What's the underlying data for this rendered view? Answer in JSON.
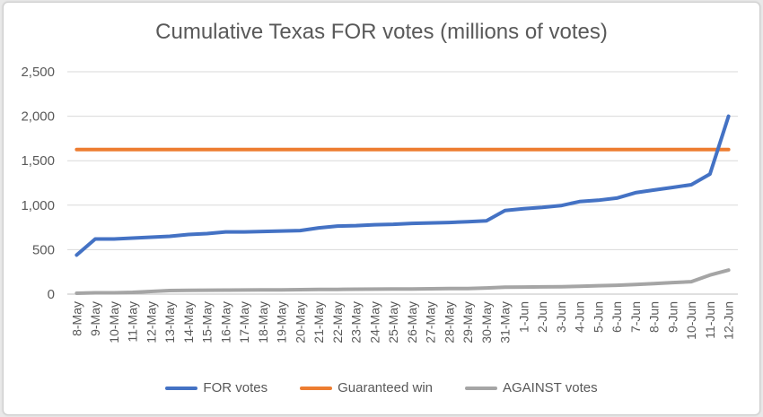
{
  "chart_data": {
    "type": "line",
    "title": "Cumulative Texas FOR votes (millions of votes)",
    "categories": [
      "8-May",
      "9-May",
      "10-May",
      "11-May",
      "12-May",
      "13-May",
      "14-May",
      "15-May",
      "16-May",
      "17-May",
      "18-May",
      "19-May",
      "20-May",
      "21-May",
      "22-May",
      "23-May",
      "24-May",
      "25-May",
      "26-May",
      "27-May",
      "28-May",
      "29-May",
      "30-May",
      "31-May",
      "1-Jun",
      "2-Jun",
      "3-Jun",
      "4-Jun",
      "5-Jun",
      "6-Jun",
      "7-Jun",
      "8-Jun",
      "9-Jun",
      "10-Jun",
      "11-Jun",
      "12-Jun"
    ],
    "ylim": [
      0,
      2500
    ],
    "yticks": [
      "0",
      "500",
      "1,000",
      "1,500",
      "2,000",
      "2,500"
    ],
    "ytick_values": [
      0,
      500,
      1000,
      1500,
      2000,
      2500
    ],
    "grid": true,
    "legend_position": "bottom",
    "series": [
      {
        "name": "FOR votes",
        "color": "#4472c4",
        "values": [
          440,
          620,
          620,
          630,
          640,
          650,
          670,
          680,
          700,
          700,
          705,
          710,
          715,
          745,
          765,
          770,
          780,
          785,
          795,
          800,
          805,
          815,
          825,
          940,
          960,
          975,
          995,
          1040,
          1055,
          1080,
          1140,
          1170,
          1200,
          1230,
          1350,
          2000
        ]
      },
      {
        "name": "Guaranteed win",
        "color": "#ed7d31",
        "values": [
          1625,
          1625,
          1625,
          1625,
          1625,
          1625,
          1625,
          1625,
          1625,
          1625,
          1625,
          1625,
          1625,
          1625,
          1625,
          1625,
          1625,
          1625,
          1625,
          1625,
          1625,
          1625,
          1625,
          1625,
          1625,
          1625,
          1625,
          1625,
          1625,
          1625,
          1625,
          1625,
          1625,
          1625,
          1625,
          1625
        ]
      },
      {
        "name": "AGAINST votes",
        "color": "#a5a5a5",
        "values": [
          10,
          15,
          15,
          20,
          30,
          40,
          42,
          44,
          45,
          46,
          47,
          48,
          50,
          52,
          53,
          55,
          56,
          57,
          58,
          60,
          62,
          64,
          70,
          78,
          80,
          82,
          84,
          88,
          95,
          100,
          108,
          118,
          130,
          140,
          215,
          270
        ]
      }
    ]
  }
}
